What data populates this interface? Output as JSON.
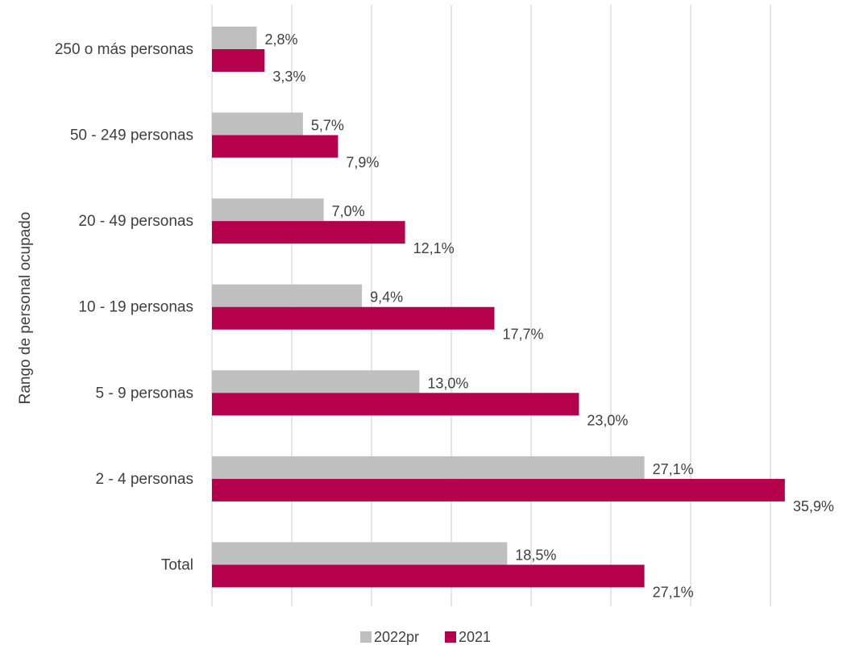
{
  "chart_data": {
    "type": "bar",
    "orientation": "horizontal",
    "categories": [
      "250 o más personas",
      "50 - 249 personas",
      "20 - 49 personas",
      "10 - 19 personas",
      "5 - 9 personas",
      "2 - 4 personas",
      "Total"
    ],
    "series": [
      {
        "name": "2022pr",
        "color": "#bfbfbf",
        "values": [
          2.8,
          5.7,
          7.0,
          9.4,
          13.0,
          27.1,
          18.5
        ],
        "labels": [
          "2,8%",
          "5,7%",
          "7,0%",
          "9,4%",
          "13,0%",
          "27,1%",
          "18,5%"
        ]
      },
      {
        "name": "2021",
        "color": "#b5004b",
        "values": [
          3.3,
          7.9,
          12.1,
          17.7,
          23.0,
          35.9,
          27.1
        ],
        "labels": [
          "3,3%",
          "7,9%",
          "12,1%",
          "17,7%",
          "23,0%",
          "35,9%",
          "27,1%"
        ]
      }
    ],
    "ylabel": "Rango de personal ocupado",
    "xlabel": "",
    "xlim": [
      0,
      35
    ],
    "x_tick_labels_shown": false,
    "grid": true,
    "legend_position": "bottom"
  }
}
